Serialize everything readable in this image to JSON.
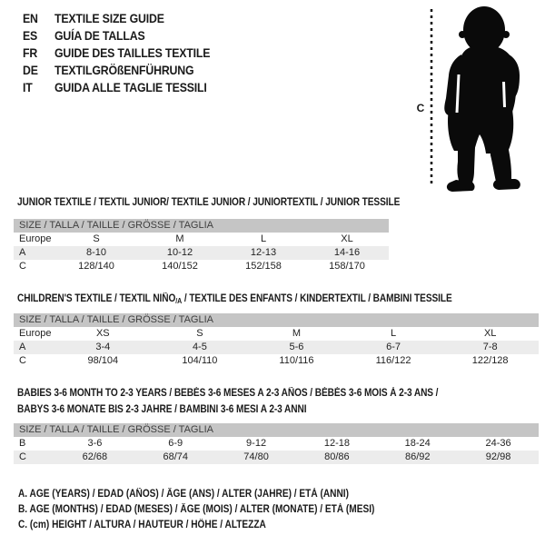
{
  "page": {
    "background": "#ffffff",
    "text_color": "#1a1a1a",
    "size_bar_color": "#c5c5c5",
    "alt_row_color": "#ececec",
    "silhouette_color": "#0a0a0a"
  },
  "header": {
    "languages": [
      {
        "code": "EN",
        "label": "TEXTILE SIZE GUIDE"
      },
      {
        "code": "ES",
        "label": "GUÍA DE TALLAS"
      },
      {
        "code": "FR",
        "label": "GUIDE DES TAILLES TEXTILE"
      },
      {
        "code": "DE",
        "label": "TEXTILGRÖßENFÜHRUNG"
      },
      {
        "code": "IT",
        "label": "GUIDA ALLE TAGLIE TESSILI"
      }
    ]
  },
  "figure": {
    "icon": "baby-silhouette",
    "height_marker": "C"
  },
  "tables": [
    {
      "title_lines": [
        {
          "prefix": "JUNIOR TEXTILE / TEXTIL JUNIOR/ TEXTILE JUNIOR / JUNIORTEXTIL / JUNIOR TESSILE",
          "sub": "",
          "suffix": ""
        }
      ],
      "size_header": "SIZE / TALLA / TAILLE / GRÖSSE / TAGLIA",
      "rows": [
        {
          "label": "Europe",
          "values": [
            "S",
            "M",
            "L",
            "XL"
          ]
        },
        {
          "label": "A",
          "values": [
            "8-10",
            "10-12",
            "12-13",
            "14-16"
          ]
        },
        {
          "label": "C",
          "values": [
            "128/140",
            "140/152",
            "152/158",
            "158/170"
          ]
        }
      ]
    },
    {
      "title_lines": [
        {
          "prefix": "CHILDREN'S TEXTILE / TEXTIL NIÑO",
          "sub": "/A",
          "suffix": " / TEXTILE DES ENFANTS / KINDERTEXTIL / BAMBINI TESSILE"
        }
      ],
      "size_header": "SIZE / TALLA / TAILLE / GRÖSSE / TAGLIA",
      "rows": [
        {
          "label": "Europe",
          "values": [
            "XS",
            "S",
            "M",
            "L",
            "XL"
          ]
        },
        {
          "label": "A",
          "values": [
            "3-4",
            "4-5",
            "5-6",
            "6-7",
            "7-8"
          ]
        },
        {
          "label": "C",
          "values": [
            "98/104",
            "104/110",
            "110/116",
            "116/122",
            "122/128"
          ]
        }
      ]
    },
    {
      "title_lines": [
        {
          "prefix": "BABIES 3-6 MONTH TO 2-3 YEARS / BEBÉS 3-6 MESES A 2-3 AÑOS / BÉBÉS 3-6 MOIS À 2-3 ANS /",
          "sub": "",
          "suffix": ""
        },
        {
          "prefix": "BABYS 3-6 MONATE BIS 2-3 JAHRE / BAMBINI 3-6 MESI A 2-3 ANNI",
          "sub": "",
          "suffix": ""
        }
      ],
      "size_header": "SIZE / TALLA / TAILLE / GRÖSSE / TAGLIA",
      "rows": [
        {
          "label": "B",
          "values": [
            "3-6",
            "6-9",
            "9-12",
            "12-18",
            "18-24",
            "24-36"
          ]
        },
        {
          "label": "C",
          "values": [
            "62/68",
            "68/74",
            "74/80",
            "80/86",
            "86/92",
            "92/98"
          ]
        }
      ]
    }
  ],
  "footnotes": [
    "A. AGE (YEARS) / EDAD (AÑOS) / ÂGE (ANS) / ALTER (JAHRE) / ETÀ (ANNI)",
    "B. AGE (MONTHS) / EDAD (MESES) / ÂGE (MOIS) / ALTER (MONATE) / ETÀ (MESI)",
    "C. (cm) HEIGHT / ALTURA / HAUTEUR / HÖHE / ALTEZZA"
  ]
}
